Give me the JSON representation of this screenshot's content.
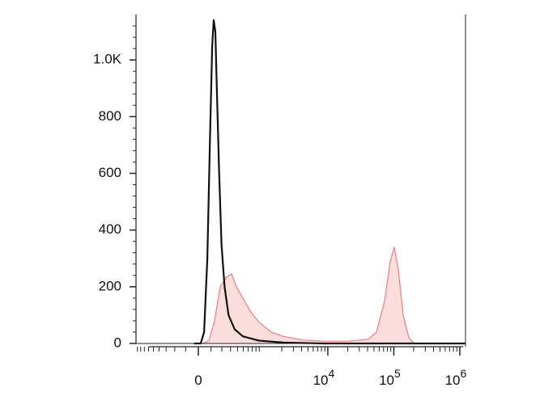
{
  "chart_data": {
    "type": "line",
    "xscale": "asinh",
    "linear_width": 218,
    "xlim": [
      -946,
      1220000
    ],
    "ylim": [
      0,
      1160
    ],
    "xticks": [
      {
        "value": 0,
        "label": "0"
      },
      {
        "value": 10000,
        "label": "10",
        "exponent": "4"
      },
      {
        "value": 100000,
        "label": "10",
        "exponent": "5"
      },
      {
        "value": 1000000,
        "label": "10",
        "exponent": "6"
      }
    ],
    "xminorticks": [
      -900,
      -800,
      -700,
      -600,
      -500,
      -400,
      -300,
      -200,
      -100,
      100,
      200,
      300,
      400,
      500,
      600,
      700,
      800,
      900,
      2000,
      3000,
      4000,
      5000,
      6000,
      7000,
      8000,
      9000,
      20000,
      30000,
      40000,
      50000,
      60000,
      70000,
      80000,
      90000,
      200000,
      300000,
      400000,
      500000,
      600000,
      700000,
      800000,
      900000
    ],
    "yticks": [
      0,
      200,
      400,
      600,
      800,
      {
        "value": 1000,
        "label": "1.0K"
      }
    ],
    "yminorticks": [
      40,
      80,
      120,
      160,
      240,
      280,
      320,
      360,
      440,
      480,
      520,
      560,
      640,
      680,
      720,
      760,
      840,
      880,
      920,
      960,
      1040,
      1080,
      1120
    ],
    "series": [
      {
        "color": "#f07c7c",
        "fill": "#fadede",
        "x": [
          31,
          82,
          130,
          183,
          253,
          314,
          381,
          493,
          665,
          894,
          1378,
          2110,
          4288,
          8700,
          20280,
          41100,
          54500,
          72400,
          88200,
          101500,
          116900,
          138400,
          168700,
          205600,
          1220000
        ],
        "values": [
          0,
          10,
          80,
          200,
          235,
          245,
          200,
          160,
          110,
          75,
          40,
          25,
          12,
          8,
          8,
          15,
          40,
          150,
          290,
          340,
          260,
          100,
          20,
          0,
          0
        ]
      },
      {
        "color": "#111111",
        "x": [
          -31,
          18,
          44,
          70,
          90,
          110,
          123,
          137,
          151,
          173,
          196,
          229,
          275,
          357,
          493,
          894,
          2110,
          8700,
          1220000
        ],
        "values": [
          0,
          0,
          40,
          300,
          700,
          1050,
          1140,
          1100,
          900,
          600,
          350,
          200,
          100,
          50,
          25,
          10,
          3,
          0,
          0
        ]
      }
    ]
  }
}
